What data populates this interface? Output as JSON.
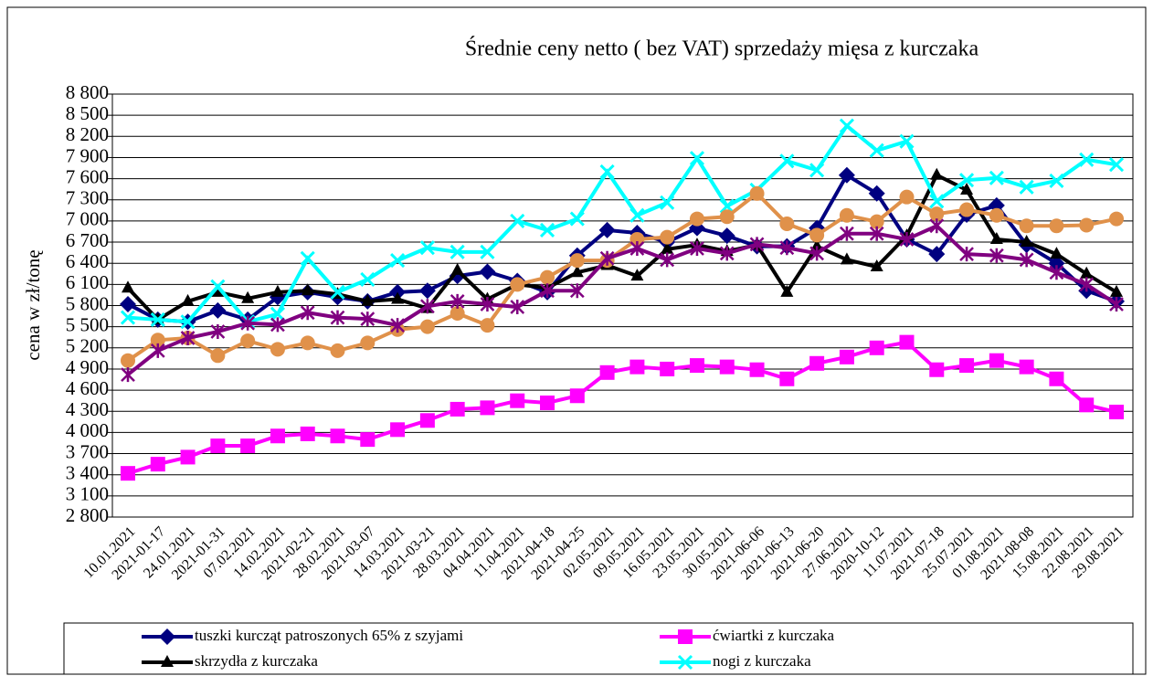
{
  "chart_data": {
    "type": "line",
    "title": "Średnie ceny netto ( bez VAT) sprzedaży mięsa z kurczaka",
    "y_label": "cena w zł/tonę",
    "categories": [
      "10.01.2021",
      "2021-01-17",
      "24.01.2021",
      "2021-01-31",
      "07.02.2021",
      "14.02.2021",
      "2021-02-21",
      "28.02.2021",
      "2021-03-07",
      "14.03.2021",
      "2021-03-21",
      "28.03.2021",
      "04.04.2021",
      "11.04.2021",
      "2021-04-18",
      "2021-04-25",
      "02.05.2021",
      "09.05.2021",
      "16.05.2021",
      "23.05.2021",
      "30.05.2021",
      "2021-06-06",
      "2021-06-13",
      "2021-06-20",
      "27.06.2021",
      "2020-10-12",
      "11.07.2021",
      "2021-07-18",
      "25.07.2021",
      "01.08.2021",
      "2021-08-08",
      "15.08.2021",
      "22.08.2021",
      "29.08.2021"
    ],
    "series": [
      {
        "name": "tuszki kurcząt patroszonych 65% z szyjami",
        "color": "#000080",
        "marker": "diamond",
        "values": [
          5820,
          5600,
          5570,
          5730,
          5600,
          5920,
          5990,
          5920,
          5860,
          5990,
          6010,
          6220,
          6280,
          6150,
          5990,
          6510,
          6870,
          6830,
          6700,
          6900,
          6790,
          6640,
          6640,
          6900,
          7650,
          7390,
          6740,
          6530,
          7090,
          7220,
          6660,
          6400,
          6010,
          5860
        ]
      },
      {
        "name": "ćwiartki z kurczaka",
        "color": "#ff00ff",
        "marker": "square",
        "values": [
          3420,
          3550,
          3650,
          3810,
          3810,
          3950,
          3980,
          3950,
          3900,
          4040,
          4170,
          4330,
          4350,
          4450,
          4420,
          4520,
          4850,
          4930,
          4900,
          4950,
          4930,
          4890,
          4760,
          4980,
          5070,
          5200,
          5280,
          4890,
          4950,
          5020,
          4930,
          4760,
          4390,
          4290
        ]
      },
      {
        "name": "skrzydła z kurczaka",
        "color": "#000000",
        "marker": "triangle",
        "values": [
          6050,
          5600,
          5860,
          5990,
          5900,
          5990,
          6010,
          5960,
          5860,
          5890,
          5760,
          6300,
          5890,
          6100,
          6050,
          6270,
          6370,
          6220,
          6600,
          6660,
          6570,
          6660,
          5990,
          6640,
          6450,
          6350,
          6790,
          7650,
          7440,
          6740,
          6700,
          6530,
          6250,
          5990
        ]
      },
      {
        "name": "nogi z kurczaka",
        "color": "#00ffff",
        "marker": "x",
        "values": [
          5630,
          5600,
          5570,
          6070,
          5570,
          5680,
          6470,
          5990,
          6170,
          6440,
          6620,
          6560,
          6560,
          7000,
          6870,
          7030,
          7700,
          7080,
          7260,
          7890,
          7210,
          7440,
          7850,
          7720,
          8350,
          8000,
          8130,
          7280,
          7580,
          7610,
          7480,
          7570,
          7870,
          7800
        ]
      },
      {
        "color": "#e0914a",
        "marker": "circle",
        "values": [
          5020,
          5310,
          5340,
          5090,
          5300,
          5180,
          5270,
          5160,
          5270,
          5460,
          5500,
          5690,
          5520,
          6100,
          6200,
          6440,
          6440,
          6740,
          6770,
          7030,
          7060,
          7390,
          6960,
          6800,
          7080,
          6990,
          7340,
          7100,
          7160,
          7080,
          6930,
          6930,
          6940,
          7030
        ]
      },
      {
        "color": "#800080",
        "marker": "asterisk",
        "values": [
          4820,
          5160,
          5340,
          5430,
          5550,
          5530,
          5700,
          5630,
          5610,
          5520,
          5790,
          5860,
          5820,
          5780,
          6010,
          6010,
          6470,
          6610,
          6450,
          6610,
          6540,
          6670,
          6620,
          6540,
          6820,
          6820,
          6740,
          6930,
          6530,
          6510,
          6450,
          6270,
          6100,
          5820
        ]
      }
    ],
    "ylim": [
      2800,
      8800
    ],
    "yticks": [
      {
        "value": 2800,
        "label": "2 800"
      },
      {
        "value": 3100,
        "label": "3 100"
      },
      {
        "value": 3400,
        "label": "3 400"
      },
      {
        "value": 3700,
        "label": "3 700"
      },
      {
        "value": 4000,
        "label": "4 000"
      },
      {
        "value": 4300,
        "label": "4 300"
      },
      {
        "value": 4600,
        "label": "4 600"
      },
      {
        "value": 4900,
        "label": "4 900"
      },
      {
        "value": 5200,
        "label": "5 200"
      },
      {
        "value": 5500,
        "label": "5 500"
      },
      {
        "value": 5800,
        "label": "5 800"
      },
      {
        "value": 6100,
        "label": "6 100"
      },
      {
        "value": 6400,
        "label": "6 400"
      },
      {
        "value": 6700,
        "label": "6 700"
      },
      {
        "value": 7000,
        "label": "7 000"
      },
      {
        "value": 7300,
        "label": "7 300"
      },
      {
        "value": 7600,
        "label": "7 600"
      },
      {
        "value": 7900,
        "label": "7 900"
      },
      {
        "value": 8200,
        "label": "8 200"
      },
      {
        "value": 8500,
        "label": "8 500"
      },
      {
        "value": 8800,
        "label": "8 800"
      }
    ],
    "grid": true
  }
}
